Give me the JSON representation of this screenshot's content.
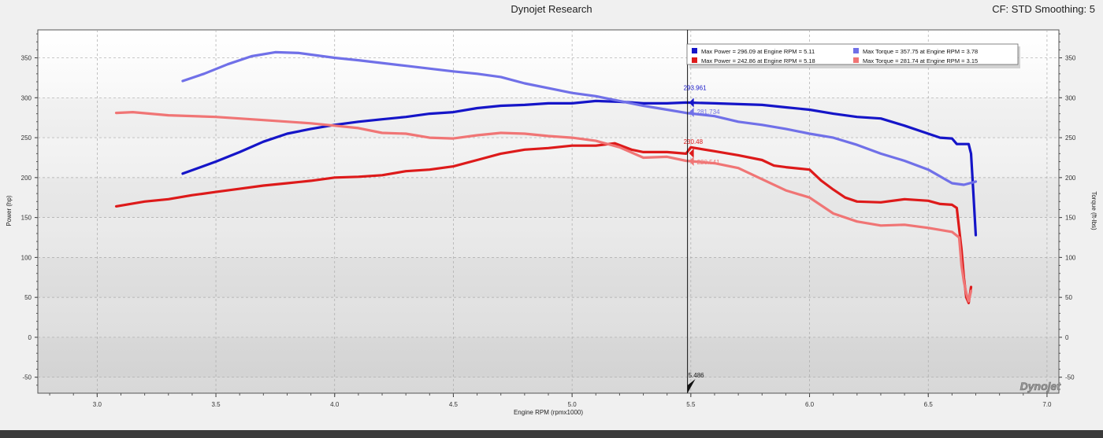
{
  "window": {
    "title": "Dynojet Research",
    "status": "CF: STD Smoothing: 5",
    "brand": "Dynojet"
  },
  "chart_data": {
    "type": "line",
    "x_axis": {
      "label": "Engine RPM (rpmx1000)",
      "range": [
        2.75,
        7.05
      ],
      "ticks": [
        "3.0",
        "3.5",
        "4.0",
        "4.5",
        "5.0",
        "5.5",
        "6.0",
        "6.5",
        "7.0"
      ],
      "tick_values": [
        3.0,
        3.5,
        4.0,
        4.5,
        5.0,
        5.5,
        6.0,
        6.5,
        7.0
      ]
    },
    "y_axis_left": {
      "label": "Power (hp)",
      "range": [
        -70,
        385
      ],
      "ticks": [
        "350",
        "300",
        "250",
        "200",
        "150",
        "100",
        "50",
        "0",
        "-50"
      ],
      "tick_values": [
        350,
        300,
        250,
        200,
        150,
        100,
        50,
        0,
        -50
      ]
    },
    "y_axis_right": {
      "label": "Torque (ft-lbs)",
      "ticks": [
        "350",
        "300",
        "250",
        "200",
        "150",
        "100",
        "50",
        "0",
        "-50"
      ],
      "tick_values": [
        350,
        300,
        250,
        200,
        150,
        100,
        50,
        0,
        -50
      ]
    },
    "grid": true,
    "legend_position": "top-right",
    "legend": [
      {
        "text": "Max Power = 296.09 at Engine RPM = 5.11",
        "color": "#1515c8"
      },
      {
        "text": "Max Torque = 357.75 at Engine RPM = 3.78",
        "color": "#7070e8"
      },
      {
        "text": "Max Power = 242.86 at Engine RPM = 5.18",
        "color": "#dd1a1a"
      },
      {
        "text": "Max Torque = 281.74 at Engine RPM = 3.15",
        "color": "#f07575"
      }
    ],
    "series": [
      {
        "color": "#1515c8",
        "points": [
          [
            3.36,
            205
          ],
          [
            3.5,
            220
          ],
          [
            3.6,
            232
          ],
          [
            3.7,
            245
          ],
          [
            3.8,
            255
          ],
          [
            3.9,
            261
          ],
          [
            4.0,
            266
          ],
          [
            4.1,
            270
          ],
          [
            4.2,
            273
          ],
          [
            4.3,
            276
          ],
          [
            4.4,
            280
          ],
          [
            4.5,
            282
          ],
          [
            4.6,
            287
          ],
          [
            4.7,
            290
          ],
          [
            4.8,
            291
          ],
          [
            4.9,
            293
          ],
          [
            5.0,
            293
          ],
          [
            5.1,
            296
          ],
          [
            5.2,
            295
          ],
          [
            5.3,
            293
          ],
          [
            5.4,
            293
          ],
          [
            5.48,
            294
          ],
          [
            5.6,
            293
          ],
          [
            5.7,
            292
          ],
          [
            5.8,
            291
          ],
          [
            5.9,
            288
          ],
          [
            6.0,
            285
          ],
          [
            6.1,
            280
          ],
          [
            6.2,
            276
          ],
          [
            6.3,
            274
          ],
          [
            6.4,
            265
          ],
          [
            6.5,
            255
          ],
          [
            6.55,
            250
          ],
          [
            6.6,
            249
          ],
          [
            6.62,
            242
          ],
          [
            6.67,
            242
          ],
          [
            6.68,
            230
          ],
          [
            6.69,
            180
          ],
          [
            6.7,
            128
          ]
        ]
      },
      {
        "color": "#7070e8",
        "points": [
          [
            3.36,
            321
          ],
          [
            3.45,
            330
          ],
          [
            3.55,
            342
          ],
          [
            3.65,
            352
          ],
          [
            3.75,
            357
          ],
          [
            3.85,
            356
          ],
          [
            4.0,
            350
          ],
          [
            4.1,
            347
          ],
          [
            4.3,
            340
          ],
          [
            4.5,
            333
          ],
          [
            4.6,
            330
          ],
          [
            4.7,
            326
          ],
          [
            4.8,
            318
          ],
          [
            4.9,
            312
          ],
          [
            5.0,
            306
          ],
          [
            5.1,
            302
          ],
          [
            5.2,
            296
          ],
          [
            5.3,
            290
          ],
          [
            5.4,
            285
          ],
          [
            5.48,
            281
          ],
          [
            5.6,
            277
          ],
          [
            5.7,
            270
          ],
          [
            5.8,
            266
          ],
          [
            5.9,
            261
          ],
          [
            6.0,
            255
          ],
          [
            6.1,
            250
          ],
          [
            6.2,
            241
          ],
          [
            6.3,
            230
          ],
          [
            6.4,
            221
          ],
          [
            6.5,
            210
          ],
          [
            6.6,
            193
          ],
          [
            6.65,
            191
          ],
          [
            6.7,
            195
          ]
        ]
      },
      {
        "color": "#dd1a1a",
        "points": [
          [
            3.08,
            164
          ],
          [
            3.2,
            170
          ],
          [
            3.3,
            173
          ],
          [
            3.4,
            178
          ],
          [
            3.5,
            182
          ],
          [
            3.6,
            186
          ],
          [
            3.7,
            190
          ],
          [
            3.8,
            193
          ],
          [
            3.9,
            196
          ],
          [
            4.0,
            200
          ],
          [
            4.1,
            201
          ],
          [
            4.2,
            203
          ],
          [
            4.3,
            208
          ],
          [
            4.4,
            210
          ],
          [
            4.5,
            214
          ],
          [
            4.6,
            222
          ],
          [
            4.7,
            230
          ],
          [
            4.8,
            235
          ],
          [
            4.9,
            237
          ],
          [
            5.0,
            240
          ],
          [
            5.1,
            240
          ],
          [
            5.18,
            243
          ],
          [
            5.25,
            235
          ],
          [
            5.3,
            232
          ],
          [
            5.4,
            232
          ],
          [
            5.48,
            230
          ],
          [
            5.5,
            238
          ],
          [
            5.6,
            233
          ],
          [
            5.7,
            228
          ],
          [
            5.8,
            222
          ],
          [
            5.85,
            215
          ],
          [
            5.9,
            213
          ],
          [
            6.0,
            210
          ],
          [
            6.05,
            196
          ],
          [
            6.1,
            185
          ],
          [
            6.15,
            175
          ],
          [
            6.2,
            170
          ],
          [
            6.3,
            169
          ],
          [
            6.4,
            173
          ],
          [
            6.5,
            171
          ],
          [
            6.55,
            167
          ],
          [
            6.6,
            166
          ],
          [
            6.62,
            162
          ],
          [
            6.64,
            110
          ],
          [
            6.65,
            75
          ],
          [
            6.66,
            50
          ],
          [
            6.67,
            43
          ],
          [
            6.68,
            63
          ]
        ]
      },
      {
        "color": "#f07575",
        "points": [
          [
            3.08,
            281
          ],
          [
            3.15,
            282
          ],
          [
            3.3,
            278
          ],
          [
            3.5,
            276
          ],
          [
            3.7,
            272
          ],
          [
            3.9,
            268
          ],
          [
            4.0,
            265
          ],
          [
            4.1,
            262
          ],
          [
            4.2,
            256
          ],
          [
            4.3,
            255
          ],
          [
            4.4,
            250
          ],
          [
            4.5,
            249
          ],
          [
            4.6,
            253
          ],
          [
            4.7,
            256
          ],
          [
            4.8,
            255
          ],
          [
            4.9,
            252
          ],
          [
            5.0,
            250
          ],
          [
            5.1,
            246
          ],
          [
            5.2,
            238
          ],
          [
            5.3,
            225
          ],
          [
            5.4,
            226
          ],
          [
            5.48,
            221
          ],
          [
            5.6,
            218
          ],
          [
            5.7,
            212
          ],
          [
            5.8,
            198
          ],
          [
            5.9,
            184
          ],
          [
            6.0,
            175
          ],
          [
            6.1,
            155
          ],
          [
            6.2,
            145
          ],
          [
            6.3,
            140
          ],
          [
            6.4,
            141
          ],
          [
            6.5,
            137
          ],
          [
            6.6,
            132
          ],
          [
            6.63,
            125
          ],
          [
            6.64,
            90
          ],
          [
            6.65,
            70
          ],
          [
            6.66,
            55
          ],
          [
            6.67,
            45
          ],
          [
            6.68,
            58
          ]
        ]
      }
    ],
    "cursor": {
      "x": 5.486,
      "label": "5.486",
      "values": [
        {
          "value": 293.961,
          "label": "293.961",
          "color": "#1515c8"
        },
        {
          "value": 281.734,
          "label": "281.734",
          "color": "#7070e8"
        },
        {
          "value": 230.48,
          "label": "230.48",
          "color": "#dd1a1a"
        },
        {
          "value": 220.541,
          "label": "220.541",
          "color": "#f07575"
        }
      ]
    }
  }
}
